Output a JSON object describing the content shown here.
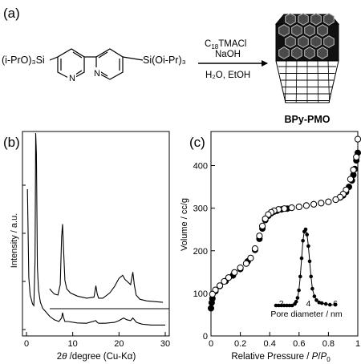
{
  "panel_a": {
    "label": "(a)",
    "precursor": {
      "left_group": "(i-PrO)₃Si",
      "right_group": "Si(Oi-Pr)₃",
      "ring_atom": "N"
    },
    "conditions": {
      "surfactant_main": "C",
      "surfactant_sub": "18",
      "surfactant_rest": "TMACl",
      "base": "NaOH",
      "solvent": "H₂O, EtOH"
    },
    "product_label": "BPy-PMO"
  },
  "colors": {
    "line": "#000000",
    "fill_dark": "#111111",
    "hex_mid": "#4a4a4a",
    "hex_light": "#bdbdbd"
  },
  "icons": {
    "arrow": "reaction-arrow",
    "product": "hexagonal-rod-bundle"
  },
  "chart_data": [
    {
      "type": "line",
      "panel_label": "(b)",
      "xlabel_pre": "2",
      "xlabel_theta": "θ",
      "xlabel_post": " /degree (Cu-Kα)",
      "ylabel": "Intensity / a.u.",
      "xlim": [
        0,
        30
      ],
      "xticks": [
        "0",
        "10",
        "20",
        "30"
      ],
      "y_ticks_labeled": false,
      "series": [
        {
          "role": "full-pattern",
          "x": [
            0.2,
            0.5,
            0.8,
            1.0,
            1.3,
            1.6,
            1.85,
            2.0,
            2.15,
            2.35,
            2.6,
            3.0,
            3.5,
            4.0,
            5,
            6,
            7,
            7.6,
            7.8,
            8.0,
            8.3,
            9,
            11,
            13,
            15.0,
            15.3,
            15.6,
            17,
            19,
            20,
            21,
            21.7,
            22.5,
            23.0,
            23.3,
            23.8,
            25,
            27,
            30
          ],
          "y": [
            8,
            3,
            2,
            1.8,
            1.5,
            1.4,
            4,
            14,
            10,
            3.6,
            2.3,
            1.6,
            1.25,
            1.1,
            0.8,
            0.6,
            0.5,
            0.7,
            1.0,
            0.75,
            0.5,
            0.5,
            0.42,
            0.4,
            0.55,
            0.45,
            0.4,
            0.4,
            0.45,
            0.55,
            0.7,
            0.6,
            0.55,
            0.7,
            0.6,
            0.45,
            0.35,
            0.3,
            0.3
          ]
        },
        {
          "role": "magnified-inset",
          "x": [
            5.0,
            6.0,
            6.8,
            7.3,
            7.6,
            7.8,
            8.0,
            8.3,
            8.7,
            9.5,
            11,
            13,
            14.6,
            15.0,
            15.3,
            15.6,
            16.5,
            18,
            19,
            20,
            20.8,
            21.3,
            21.8,
            22.5,
            23.0,
            23.3,
            23.7,
            24.5,
            26,
            28,
            29.5
          ],
          "y": [
            0.8,
            0.55,
            0.5,
            1.0,
            3.3,
            3.9,
            2.8,
            1.2,
            0.8,
            0.6,
            0.45,
            0.35,
            0.4,
            0.95,
            0.55,
            0.35,
            0.35,
            0.6,
            0.9,
            1.3,
            1.45,
            1.25,
            1.15,
            1.0,
            1.6,
            1.0,
            0.5,
            0.3,
            0.22,
            0.18,
            0.15
          ]
        }
      ]
    },
    {
      "type": "scatter",
      "panel_label": "(c)",
      "xlabel_pre": "Relative Pressure / ",
      "xlabel_var": "P",
      "xlabel_slash": "/",
      "xlabel_var0": "P",
      "xlabel_sub": "0",
      "ylabel": "Volume / cc/g",
      "xlim": [
        0,
        1
      ],
      "ylim": [
        0,
        480
      ],
      "xticks": [
        "0",
        "0.2",
        "0.4",
        "0.6",
        "0.8",
        "1"
      ],
      "yticks": [
        "0",
        "100",
        "200",
        "300",
        "400"
      ],
      "series": [
        {
          "role": "adsorption",
          "marker": "filled-circle",
          "x": [
            0.0,
            0.005,
            0.01,
            0.03,
            0.06,
            0.1,
            0.15,
            0.2,
            0.25,
            0.3,
            0.33,
            0.35,
            0.37,
            0.39,
            0.41,
            0.43,
            0.45,
            0.48,
            0.52,
            0.55,
            0.6,
            0.65,
            0.7,
            0.75,
            0.8,
            0.85,
            0.88,
            0.9,
            0.92,
            0.94,
            0.96,
            0.97,
            0.98,
            0.99,
            1.0
          ],
          "y": [
            65,
            78,
            88,
            105,
            117,
            129,
            142,
            157,
            175,
            202,
            228,
            252,
            272,
            282,
            288,
            292,
            294,
            297,
            299,
            301,
            303,
            306,
            309,
            312,
            315,
            320,
            325,
            330,
            338,
            350,
            365,
            378,
            392,
            412,
            430
          ]
        },
        {
          "role": "desorption",
          "marker": "open-circle",
          "x": [
            1.0,
            0.99,
            0.97,
            0.95,
            0.92,
            0.9,
            0.88,
            0.85,
            0.8,
            0.75,
            0.7,
            0.65,
            0.6,
            0.55,
            0.5,
            0.46,
            0.43,
            0.41,
            0.39,
            0.37,
            0.35,
            0.33,
            0.3,
            0.27,
            0.24,
            0.2,
            0.16,
            0.12,
            0.09,
            0.06,
            0.03,
            0.01
          ],
          "y": [
            462,
            420,
            390,
            368,
            343,
            333,
            326,
            320,
            315,
            312,
            309,
            306,
            303,
            301,
            299,
            297,
            294,
            290,
            285,
            275,
            258,
            235,
            205,
            183,
            170,
            160,
            149,
            137,
            128,
            118,
            108,
            98
          ]
        }
      ],
      "inset": {
        "type": "line",
        "xlabel": "Pore diameter / nm",
        "xlim": [
          0,
          7
        ],
        "xticks": [
          "2",
          "4",
          "6"
        ],
        "marker": "filled-circle",
        "x": [
          1.6,
          1.8,
          2.0,
          2.2,
          2.4,
          2.6,
          2.8,
          3.0,
          3.1,
          3.2,
          3.3,
          3.4,
          3.5,
          3.6,
          3.7,
          3.8,
          3.9,
          4.0,
          4.1,
          4.2,
          4.3,
          4.45,
          4.6,
          4.8,
          5.0,
          5.3,
          5.6,
          6.0
        ],
        "y": [
          0,
          0,
          0,
          0,
          0,
          0,
          0,
          0.02,
          0.05,
          0.1,
          0.2,
          0.38,
          0.62,
          0.85,
          0.97,
          1.0,
          0.93,
          0.78,
          0.58,
          0.38,
          0.22,
          0.12,
          0.07,
          0.04,
          0.03,
          0.02,
          0.01,
          0.01
        ]
      }
    }
  ]
}
